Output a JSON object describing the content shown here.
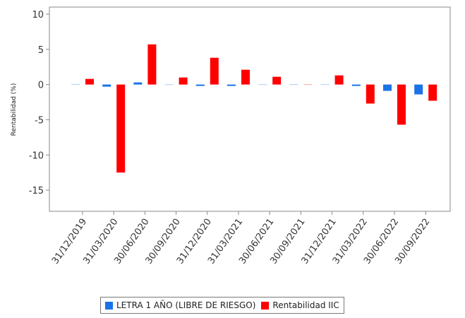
{
  "chart_data": {
    "type": "bar",
    "ylabel": "Rentabilidad (%)",
    "ylim": [
      -18,
      11
    ],
    "yticks": [
      10,
      5,
      0,
      -5,
      -10,
      -15
    ],
    "categories": [
      "31/12/2019",
      "31/03/2020",
      "30/06/2020",
      "30/09/2020",
      "31/12/2020",
      "31/03/2021",
      "30/06/2021",
      "30/09/2021",
      "31/12/2021",
      "31/03/2022",
      "30/06/2022",
      "30/09/2022"
    ],
    "series": [
      {
        "name": "LETRA 1 AÑO (LIBRE DE RIESGO)",
        "color": "#1a73e8",
        "values": [
          0.0,
          -0.3,
          0.3,
          0.0,
          -0.1,
          -0.1,
          0.0,
          0.0,
          0.0,
          -0.1,
          -0.9,
          -1.4
        ]
      },
      {
        "name": "Rentabilidad IIC",
        "color": "#ff0000",
        "values": [
          0.8,
          -12.5,
          5.7,
          1.0,
          3.8,
          2.1,
          1.1,
          0.0,
          1.3,
          -2.7,
          -5.7,
          -2.3
        ]
      }
    ],
    "grid": false,
    "legend": "bottom"
  }
}
